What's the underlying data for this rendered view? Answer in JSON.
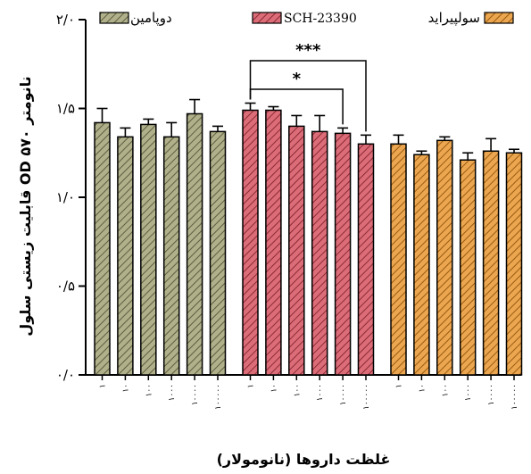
{
  "chart_data": {
    "type": "bar",
    "ylabel": "قابلیت زیستی سلول OD ۵۷۰ نانومتر",
    "xlabel": "غلظت داروها (نانومولار)",
    "ylim": [
      0,
      2
    ],
    "yticks": [
      {
        "value": 0,
        "label": "۰/۰"
      },
      {
        "value": 0.5,
        "label": "۰/۵"
      },
      {
        "value": 1,
        "label": "۱/۰"
      },
      {
        "value": 1.5,
        "label": "۱/۵"
      },
      {
        "value": 2,
        "label": "۲/۰"
      }
    ],
    "categories": [
      "۱",
      "۱۰",
      "۱۰۰",
      "۱۰۰۰",
      "۱۰۰۰۰",
      "۱۰۰۰۰۰"
    ],
    "legend_position": "top",
    "series": [
      {
        "name": "دوپامین",
        "color": "#b0b08a",
        "values": [
          1.42,
          1.34,
          1.41,
          1.34,
          1.47,
          1.37
        ],
        "errors": [
          0.08,
          0.05,
          0.03,
          0.08,
          0.08,
          0.03
        ]
      },
      {
        "name": "SCH-23390",
        "color": "#dc6d78",
        "values": [
          1.49,
          1.49,
          1.4,
          1.37,
          1.36,
          1.3
        ],
        "errors": [
          0.04,
          0.02,
          0.06,
          0.09,
          0.03,
          0.05
        ]
      },
      {
        "name": "سولپیراید",
        "color": "#eba64f",
        "values": [
          1.3,
          1.24,
          1.32,
          1.21,
          1.26,
          1.25
        ],
        "errors": [
          0.05,
          0.02,
          0.02,
          0.04,
          0.07,
          0.02
        ]
      }
    ],
    "annotations": [
      {
        "label": "***",
        "series": 1,
        "from": 0,
        "to": 5
      },
      {
        "label": "*",
        "series": 1,
        "from": 0,
        "to": 4
      }
    ]
  }
}
